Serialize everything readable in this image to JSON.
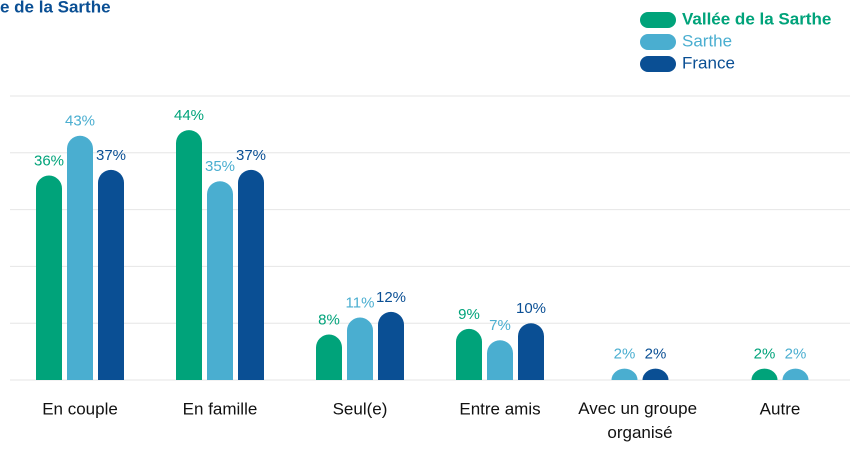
{
  "chart_data": {
    "type": "bar",
    "title": "e de la Sarthe",
    "categories": [
      "En couple",
      "En famille",
      "Seul(e)",
      "Entre amis",
      "Avec un groupe organisé",
      "Autre"
    ],
    "series": [
      {
        "name": "Vallée de la Sarthe",
        "color": "#00a37a",
        "values": [
          36,
          44,
          8,
          9,
          null,
          2
        ],
        "value_labels": [
          "36%",
          "44%",
          "8%",
          "9%",
          null,
          "2%"
        ]
      },
      {
        "name": "Sarthe",
        "color": "#4aaed0",
        "values": [
          43,
          35,
          11,
          7,
          2,
          2
        ],
        "value_labels": [
          "43%",
          "35%",
          "11%",
          "7%",
          "2%",
          "2%"
        ]
      },
      {
        "name": "France",
        "color": "#0a4f94",
        "values": [
          37,
          37,
          12,
          10,
          2,
          null
        ],
        "value_labels": [
          "37%",
          "37%",
          "12%",
          "10%",
          "2%",
          null
        ]
      }
    ],
    "ylim": [
      0,
      50
    ],
    "yticks": [
      0,
      10,
      20,
      30,
      40,
      50
    ],
    "grid": true,
    "legend": "top-right"
  }
}
